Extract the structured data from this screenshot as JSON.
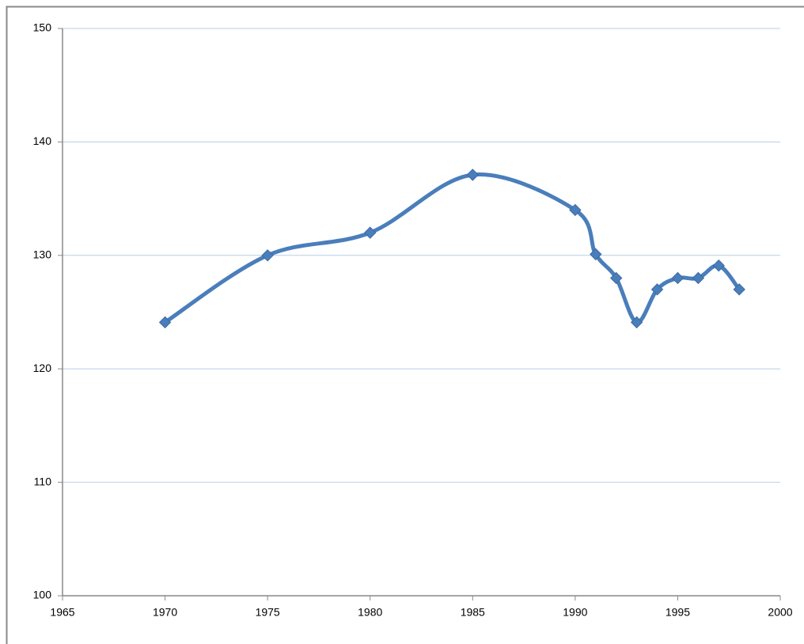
{
  "chart_data": {
    "type": "line",
    "smooth": true,
    "grid": true,
    "markers": "diamond",
    "x": [
      1970,
      1975,
      1980,
      1985,
      1990,
      1991,
      1992,
      1993,
      1994,
      1995,
      1996,
      1997,
      1998
    ],
    "series": [
      {
        "color": "#4a7ebb",
        "values": [
          124.1,
          130,
          132,
          137.1,
          134,
          130.1,
          128,
          124.1,
          127,
          128,
          128,
          129.1,
          127
        ]
      }
    ],
    "xlim": [
      1965,
      2000
    ],
    "xticks": [
      1965,
      1970,
      1975,
      1980,
      1985,
      1990,
      1995,
      2000
    ],
    "ylim": [
      100,
      150
    ],
    "yticks": [
      100,
      110,
      120,
      130,
      140,
      150
    ]
  }
}
